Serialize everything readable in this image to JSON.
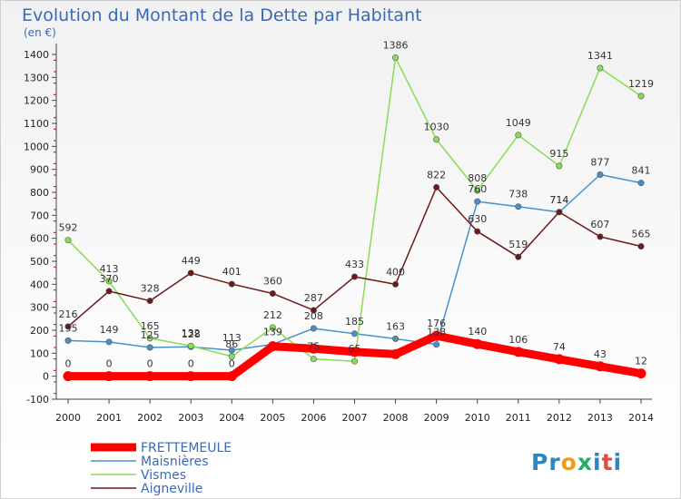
{
  "chart_data": {
    "type": "line",
    "title": "Evolution du Montant de la Dette par Habitant",
    "subtitle": "(en €)",
    "x": [
      "2000",
      "2001",
      "2002",
      "2003",
      "2004",
      "2005",
      "2006",
      "2007",
      "2008",
      "2009",
      "2010",
      "2011",
      "2012",
      "2013",
      "2014"
    ],
    "ylim": [
      -100,
      1400
    ],
    "yticks": [
      -100,
      0,
      100,
      200,
      300,
      400,
      500,
      600,
      700,
      800,
      900,
      1000,
      1100,
      1200,
      1300,
      1400
    ],
    "grid": false,
    "legend_position": "bottom-left",
    "series": [
      {
        "name": "FRETTEMEULE",
        "color": "#ff0000",
        "values": [
          0,
          0,
          0,
          0,
          0,
          130,
          120,
          106,
          96,
          176,
          140,
          106,
          74,
          43,
          12
        ],
        "labels": [
          "0",
          "0",
          "0",
          "0",
          "0",
          "",
          "",
          "",
          "",
          "176",
          "140",
          "106",
          "74",
          "43",
          "12"
        ]
      },
      {
        "name": "Maisnières",
        "color": "#4a90c8",
        "values": [
          155,
          149,
          125,
          128,
          113,
          139,
          208,
          185,
          163,
          138,
          760,
          738,
          714,
          877,
          841
        ],
        "labels": [
          "155",
          "149",
          "125",
          "128",
          "113",
          "139",
          "208",
          "185",
          "163",
          "138",
          "760",
          "738",
          "714",
          "877",
          "841"
        ]
      },
      {
        "name": "Vismes",
        "color": "#88dd55",
        "values": [
          592,
          413,
          165,
          132,
          86,
          212,
          75,
          65,
          1386,
          1030,
          808,
          1049,
          915,
          1341,
          1219
        ],
        "labels": [
          "592",
          "413",
          "165",
          "132",
          "86",
          "212",
          "75",
          "65",
          "1386",
          "1030",
          "808",
          "1049",
          "915",
          "1341",
          "1219"
        ]
      },
      {
        "name": "Aigneville",
        "color": "#6b1a1a",
        "values": [
          216,
          370,
          328,
          449,
          401,
          360,
          287,
          433,
          400,
          822,
          630,
          519,
          714,
          607,
          565
        ],
        "labels": [
          "216",
          "370",
          "328",
          "449",
          "401",
          "360",
          "287",
          "433",
          "400",
          "822",
          "630",
          "519",
          "714",
          "607",
          "565"
        ]
      }
    ]
  },
  "branding": {
    "logo_text": "Proxiti"
  }
}
